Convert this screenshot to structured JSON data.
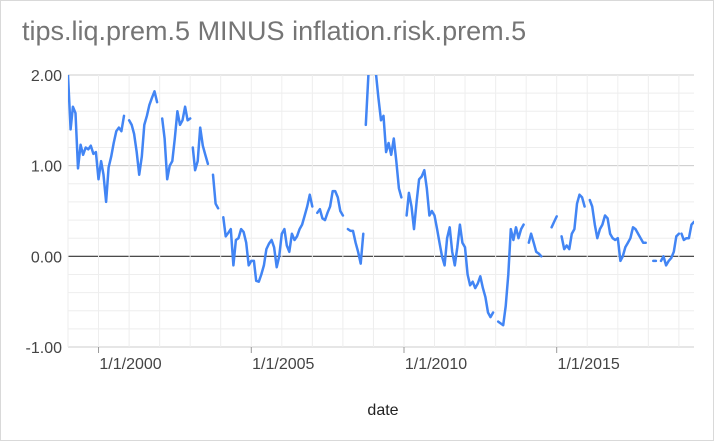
{
  "chart_data": {
    "type": "line",
    "title": "tips.liq.prem.5 MINUS inflation.risk.prem.5",
    "xlabel": "date",
    "ylabel": "",
    "x_ticks": [
      "1/1/2000",
      "1/1/2005",
      "1/1/2010",
      "1/1/2015"
    ],
    "y_ticks": [
      "2.00",
      "1.00",
      "0.00",
      "-1.00"
    ],
    "ylim": [
      -1.0,
      2.0
    ],
    "xlim": [
      "1999-01-01",
      "2019-07-01"
    ],
    "grid": true,
    "legend": "none",
    "line_color": "#4285f4",
    "series": [
      {
        "segments": [
          [
            [
              "1999-01",
              2.0
            ],
            [
              "1999-02",
              1.4
            ],
            [
              "1999-03",
              1.65
            ],
            [
              "1999-04",
              1.58
            ],
            [
              "1999-05",
              0.97
            ],
            [
              "1999-06",
              1.23
            ],
            [
              "1999-07",
              1.12
            ],
            [
              "1999-08",
              1.2
            ],
            [
              "1999-09",
              1.18
            ],
            [
              "1999-10",
              1.22
            ],
            [
              "1999-11",
              1.13
            ],
            [
              "1999-12",
              1.15
            ],
            [
              "2000-01",
              0.85
            ],
            [
              "2000-02",
              1.05
            ],
            [
              "2000-03",
              0.9
            ],
            [
              "2000-04",
              0.6
            ],
            [
              "2000-05",
              0.98
            ],
            [
              "2000-06",
              1.1
            ],
            [
              "2000-07",
              1.25
            ],
            [
              "2000-08",
              1.38
            ],
            [
              "2000-09",
              1.42
            ],
            [
              "2000-10",
              1.38
            ],
            [
              "2000-11",
              1.55
            ]
          ],
          [
            [
              "2001-01",
              1.5
            ],
            [
              "2001-02",
              1.45
            ],
            [
              "2001-03",
              1.35
            ],
            [
              "2001-04",
              1.15
            ],
            [
              "2001-05",
              0.9
            ],
            [
              "2001-06",
              1.1
            ],
            [
              "2001-07",
              1.45
            ],
            [
              "2001-08",
              1.55
            ],
            [
              "2001-09",
              1.67
            ],
            [
              "2001-10",
              1.75
            ],
            [
              "2001-11",
              1.82
            ],
            [
              "2001-12",
              1.7
            ]
          ],
          [
            [
              "2002-02",
              1.52
            ],
            [
              "2002-03",
              1.3
            ],
            [
              "2002-04",
              0.85
            ],
            [
              "2002-05",
              1.0
            ],
            [
              "2002-06",
              1.05
            ],
            [
              "2002-07",
              1.3
            ],
            [
              "2002-08",
              1.6
            ],
            [
              "2002-09",
              1.45
            ],
            [
              "2002-10",
              1.5
            ],
            [
              "2002-11",
              1.65
            ],
            [
              "2002-12",
              1.5
            ],
            [
              "2003-01",
              1.52
            ]
          ],
          [
            [
              "2003-02",
              1.2
            ],
            [
              "2003-03",
              0.95
            ],
            [
              "2003-04",
              1.05
            ],
            [
              "2003-05",
              1.42
            ],
            [
              "2003-06",
              1.22
            ],
            [
              "2003-07",
              1.12
            ],
            [
              "2003-08",
              1.02
            ]
          ],
          [
            [
              "2003-10",
              0.9
            ],
            [
              "2003-11",
              0.58
            ],
            [
              "2003-12",
              0.53
            ]
          ],
          [
            [
              "2004-02",
              0.43
            ],
            [
              "2004-03",
              0.22
            ],
            [
              "2004-04",
              0.26
            ],
            [
              "2004-05",
              0.3
            ],
            [
              "2004-06",
              -0.1
            ],
            [
              "2004-07",
              0.18
            ],
            [
              "2004-08",
              0.2
            ],
            [
              "2004-09",
              0.3
            ],
            [
              "2004-10",
              0.27
            ],
            [
              "2004-11",
              0.15
            ],
            [
              "2004-12",
              -0.1
            ],
            [
              "2005-01",
              -0.05
            ],
            [
              "2005-02",
              -0.05
            ],
            [
              "2005-03",
              -0.27
            ],
            [
              "2005-04",
              -0.28
            ],
            [
              "2005-05",
              -0.2
            ],
            [
              "2005-06",
              -0.1
            ],
            [
              "2005-07",
              0.08
            ],
            [
              "2005-08",
              0.14
            ],
            [
              "2005-09",
              0.18
            ],
            [
              "2005-10",
              0.1
            ],
            [
              "2005-11",
              -0.12
            ],
            [
              "2005-12",
              0.0
            ],
            [
              "2006-01",
              0.25
            ],
            [
              "2006-02",
              0.3
            ],
            [
              "2006-03",
              0.12
            ],
            [
              "2006-04",
              0.05
            ],
            [
              "2006-05",
              0.25
            ],
            [
              "2006-06",
              0.18
            ],
            [
              "2006-07",
              0.22
            ],
            [
              "2006-08",
              0.3
            ],
            [
              "2006-09",
              0.35
            ],
            [
              "2006-10",
              0.45
            ],
            [
              "2006-11",
              0.55
            ],
            [
              "2006-12",
              0.68
            ],
            [
              "2007-01",
              0.55
            ]
          ],
          [
            [
              "2007-03",
              0.48
            ],
            [
              "2007-04",
              0.52
            ],
            [
              "2007-05",
              0.42
            ],
            [
              "2007-06",
              0.4
            ],
            [
              "2007-07",
              0.48
            ],
            [
              "2007-08",
              0.55
            ],
            [
              "2007-09",
              0.72
            ],
            [
              "2007-10",
              0.72
            ],
            [
              "2007-11",
              0.65
            ],
            [
              "2007-12",
              0.5
            ],
            [
              "2008-01",
              0.45
            ]
          ],
          [
            [
              "2008-03",
              0.3
            ],
            [
              "2008-04",
              0.28
            ],
            [
              "2008-05",
              0.28
            ],
            [
              "2008-06",
              0.15
            ],
            [
              "2008-07",
              0.05
            ],
            [
              "2008-08",
              -0.08
            ],
            [
              "2008-09",
              0.25
            ]
          ],
          [
            [
              "2008-10",
              1.45
            ],
            [
              "2008-11",
              2.0
            ]
          ],
          [
            [
              "2009-02",
              2.0
            ],
            [
              "2009-03",
              1.75
            ],
            [
              "2009-04",
              1.5
            ],
            [
              "2009-05",
              1.55
            ],
            [
              "2009-06",
              1.15
            ],
            [
              "2009-07",
              1.25
            ],
            [
              "2009-08",
              1.12
            ],
            [
              "2009-09",
              1.3
            ],
            [
              "2009-10",
              1.05
            ],
            [
              "2009-11",
              0.75
            ],
            [
              "2009-12",
              0.65
            ]
          ],
          [
            [
              "2010-02",
              0.45
            ],
            [
              "2010-03",
              0.7
            ],
            [
              "2010-04",
              0.55
            ],
            [
              "2010-05",
              0.3
            ],
            [
              "2010-06",
              0.6
            ],
            [
              "2010-07",
              0.85
            ],
            [
              "2010-08",
              0.88
            ],
            [
              "2010-09",
              0.95
            ],
            [
              "2010-10",
              0.75
            ],
            [
              "2010-11",
              0.45
            ],
            [
              "2010-12",
              0.5
            ],
            [
              "2011-01",
              0.45
            ],
            [
              "2011-02",
              0.3
            ],
            [
              "2011-03",
              0.15
            ],
            [
              "2011-04",
              0.0
            ],
            [
              "2011-05",
              -0.1
            ],
            [
              "2011-06",
              0.2
            ],
            [
              "2011-07",
              0.32
            ],
            [
              "2011-08",
              0.05
            ],
            [
              "2011-09",
              -0.1
            ],
            [
              "2011-10",
              0.1
            ],
            [
              "2011-11",
              0.35
            ],
            [
              "2011-12",
              0.15
            ],
            [
              "2012-01",
              0.1
            ],
            [
              "2012-02",
              -0.2
            ],
            [
              "2012-03",
              -0.32
            ],
            [
              "2012-04",
              -0.28
            ],
            [
              "2012-05",
              -0.35
            ],
            [
              "2012-06",
              -0.3
            ],
            [
              "2012-07",
              -0.22
            ],
            [
              "2012-08",
              -0.35
            ],
            [
              "2012-09",
              -0.45
            ],
            [
              "2012-10",
              -0.62
            ],
            [
              "2012-11",
              -0.67
            ],
            [
              "2012-12",
              -0.62
            ]
          ],
          [
            [
              "2013-02",
              -0.72
            ],
            [
              "2013-03",
              -0.74
            ],
            [
              "2013-04",
              -0.76
            ],
            [
              "2013-05",
              -0.55
            ],
            [
              "2013-06",
              -0.2
            ],
            [
              "2013-07",
              0.3
            ],
            [
              "2013-08",
              0.18
            ],
            [
              "2013-09",
              0.32
            ],
            [
              "2013-10",
              0.2
            ],
            [
              "2013-11",
              0.3
            ],
            [
              "2013-12",
              0.35
            ]
          ],
          [
            [
              "2014-02",
              0.15
            ],
            [
              "2014-03",
              0.25
            ],
            [
              "2014-04",
              0.15
            ],
            [
              "2014-05",
              0.05
            ],
            [
              "2014-06",
              0.03
            ],
            [
              "2014-07",
              0.0
            ]
          ],
          [
            [
              "2014-11",
              0.32
            ],
            [
              "2014-12",
              0.38
            ],
            [
              "2015-01",
              0.44
            ]
          ],
          [
            [
              "2015-03",
              0.22
            ],
            [
              "2015-04",
              0.08
            ],
            [
              "2015-05",
              0.12
            ],
            [
              "2015-06",
              0.08
            ],
            [
              "2015-07",
              0.25
            ],
            [
              "2015-08",
              0.3
            ],
            [
              "2015-09",
              0.58
            ],
            [
              "2015-10",
              0.68
            ],
            [
              "2015-11",
              0.65
            ],
            [
              "2015-12",
              0.55
            ]
          ],
          [
            [
              "2016-02",
              0.62
            ],
            [
              "2016-03",
              0.55
            ],
            [
              "2016-04",
              0.35
            ],
            [
              "2016-05",
              0.2
            ],
            [
              "2016-06",
              0.3
            ],
            [
              "2016-07",
              0.35
            ],
            [
              "2016-08",
              0.45
            ],
            [
              "2016-09",
              0.42
            ],
            [
              "2016-10",
              0.25
            ],
            [
              "2016-11",
              0.2
            ],
            [
              "2016-12",
              0.18
            ],
            [
              "2017-01",
              0.2
            ],
            [
              "2017-02",
              -0.05
            ],
            [
              "2017-03",
              0.0
            ],
            [
              "2017-04",
              0.1
            ],
            [
              "2017-05",
              0.15
            ],
            [
              "2017-06",
              0.2
            ],
            [
              "2017-07",
              0.32
            ],
            [
              "2017-08",
              0.3
            ],
            [
              "2017-09",
              0.25
            ],
            [
              "2017-10",
              0.2
            ],
            [
              "2017-11",
              0.15
            ],
            [
              "2017-12",
              0.15
            ]
          ],
          [
            [
              "2018-03",
              -0.05
            ],
            [
              "2018-04",
              -0.05
            ]
          ],
          [
            [
              "2018-06",
              -0.05
            ],
            [
              "2018-07",
              0.0
            ],
            [
              "2018-08",
              -0.1
            ],
            [
              "2018-09",
              -0.05
            ],
            [
              "2018-10",
              -0.02
            ],
            [
              "2018-11",
              0.05
            ],
            [
              "2018-12",
              0.22
            ],
            [
              "2019-01",
              0.25
            ]
          ],
          [
            [
              "2019-02",
              0.25
            ],
            [
              "2019-03",
              0.18
            ],
            [
              "2019-04",
              0.2
            ],
            [
              "2019-05",
              0.2
            ],
            [
              "2019-06",
              0.35
            ],
            [
              "2019-07",
              0.38
            ]
          ]
        ]
      }
    ]
  }
}
